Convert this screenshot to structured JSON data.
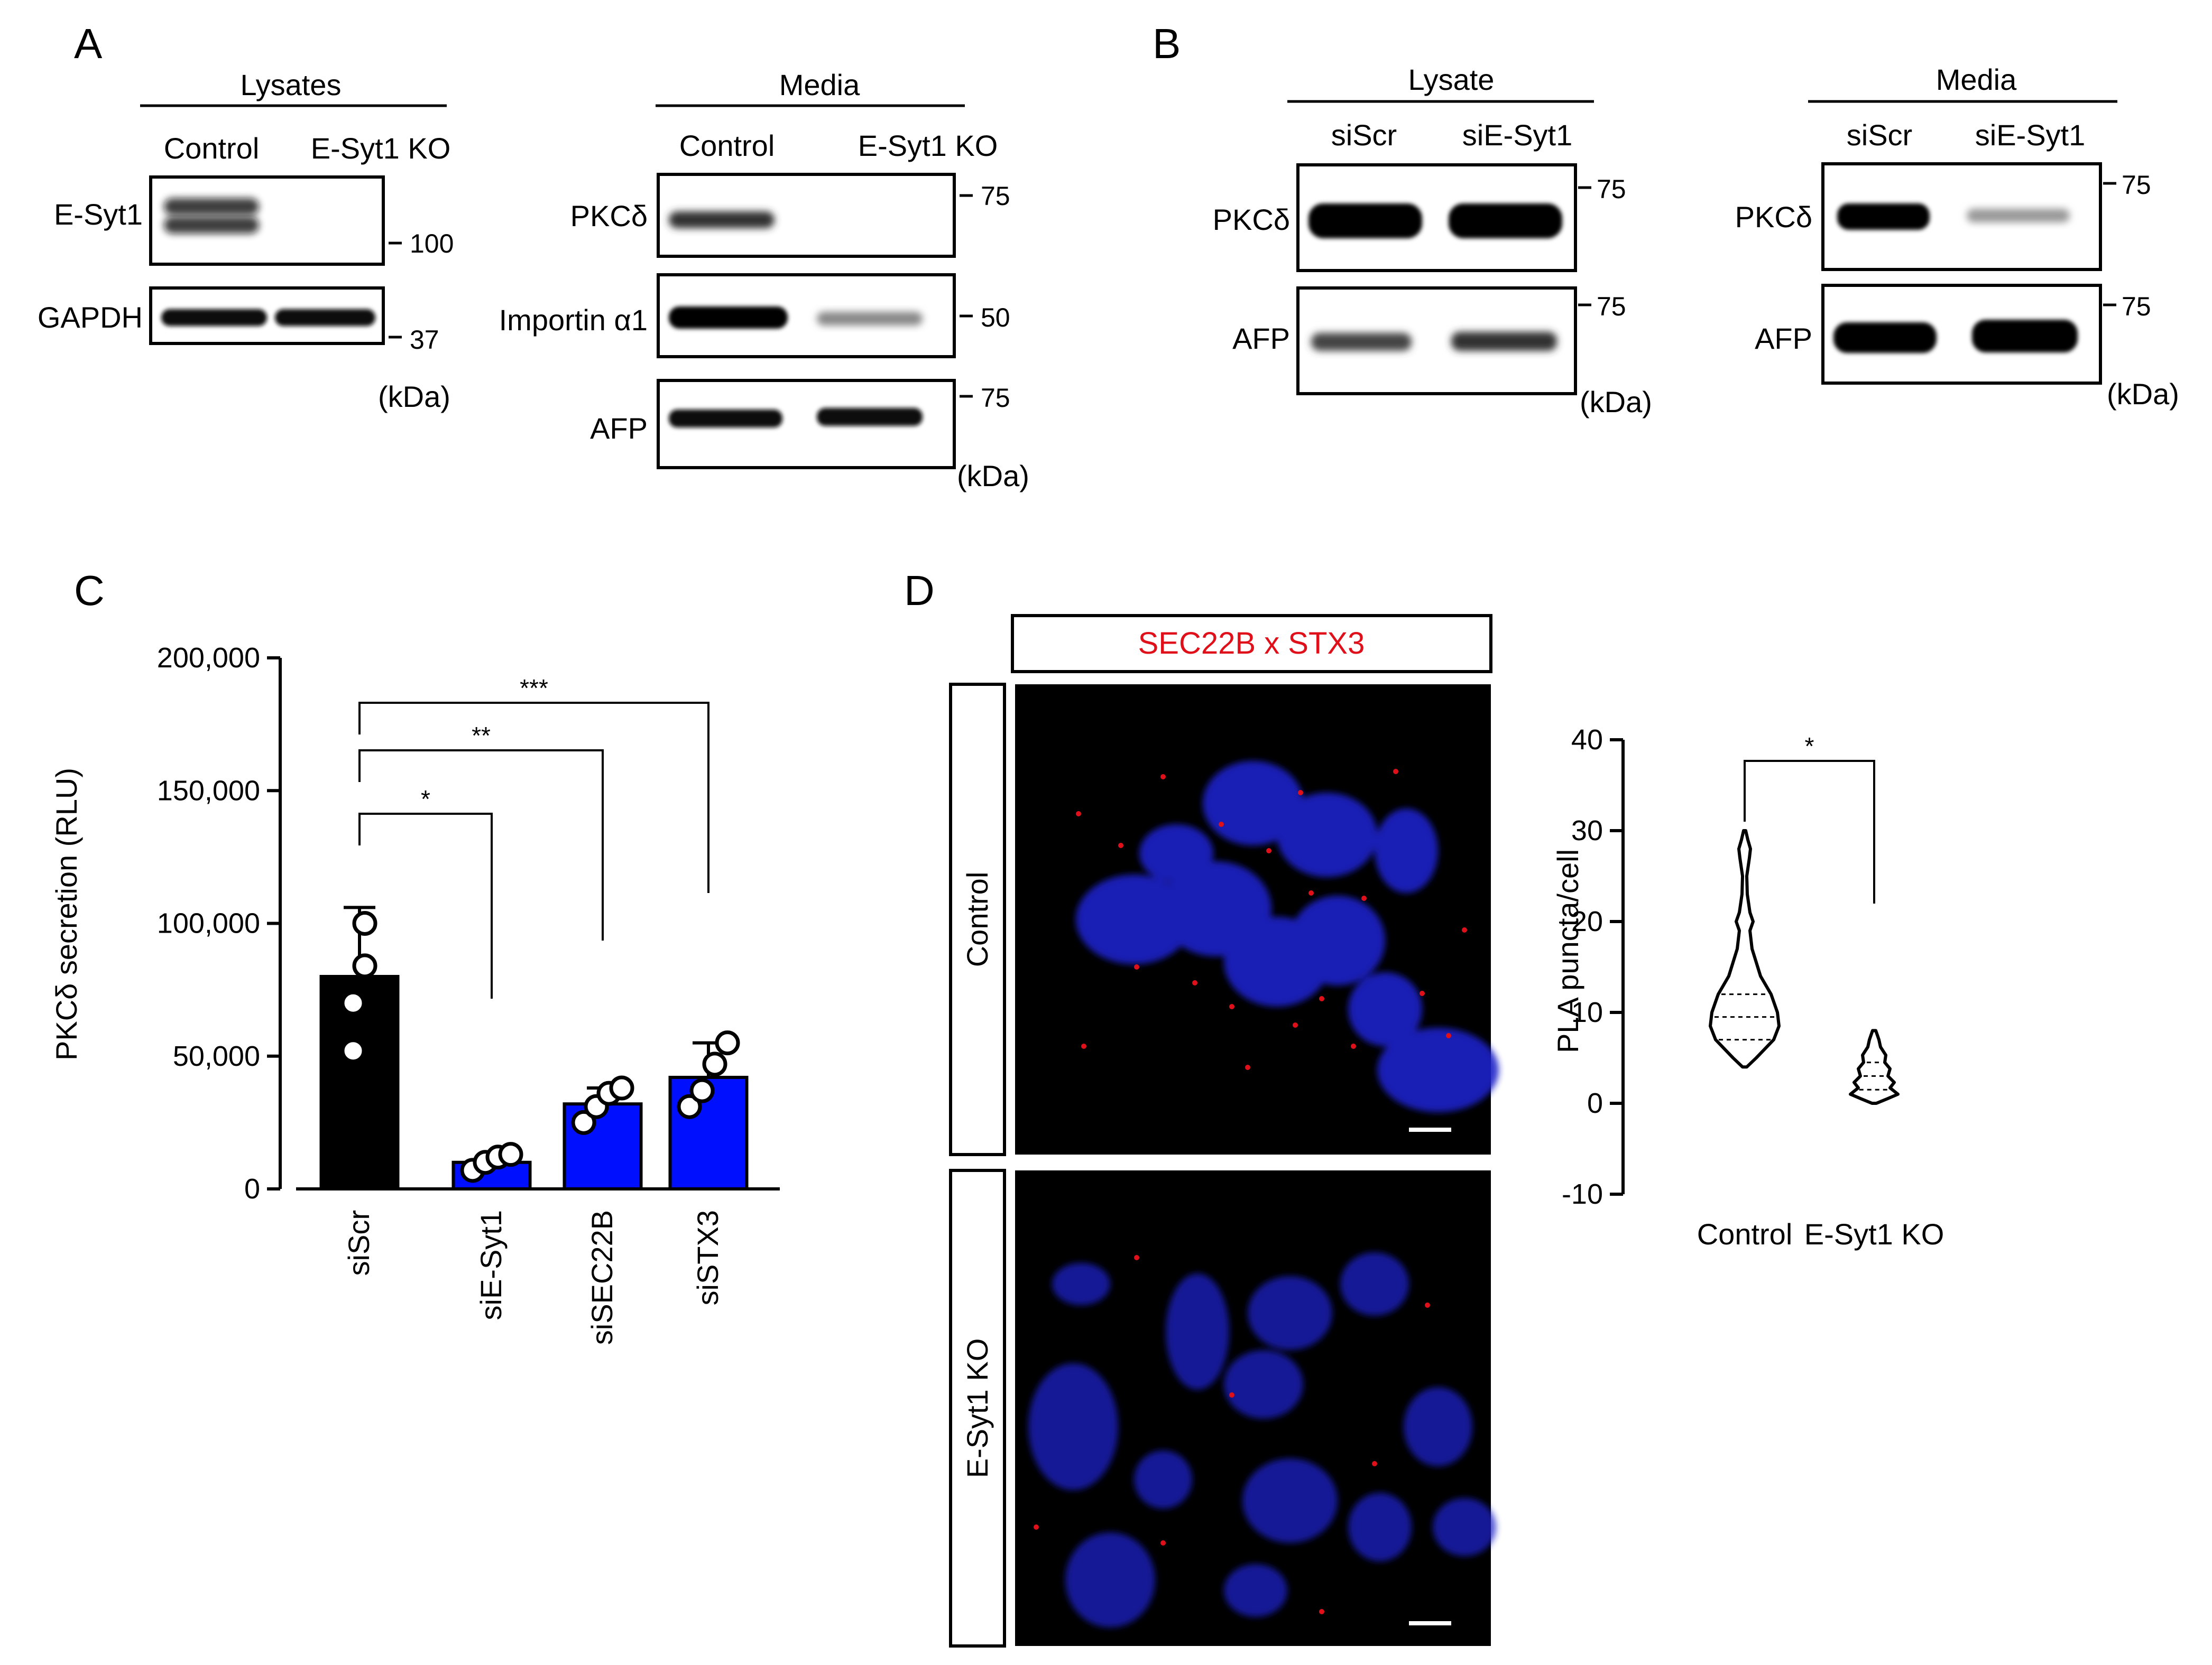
{
  "panel_A": {
    "letter": "A",
    "lysates": {
      "header": "Lysates",
      "lanes": [
        "Control",
        "E-Syt1  KO"
      ],
      "rows": [
        {
          "label": "E-Syt1",
          "marker": "100"
        },
        {
          "label": "GAPDH",
          "marker": "37"
        }
      ],
      "unit": "(kDa)"
    },
    "media": {
      "header": "Media",
      "lanes": [
        "Control",
        "E-Syt1  KO"
      ],
      "rows": [
        {
          "label": "PKCδ",
          "marker": "75"
        },
        {
          "label": "Importin α1",
          "marker": "50"
        },
        {
          "label": "AFP",
          "marker": "75"
        }
      ],
      "unit": "(kDa)"
    }
  },
  "panel_B": {
    "letter": "B",
    "lysate": {
      "header": "Lysate",
      "lanes": [
        "siScr",
        "siE-Syt1"
      ],
      "rows": [
        {
          "label": "PKCδ",
          "marker": "75"
        },
        {
          "label": "AFP",
          "marker": "75"
        }
      ],
      "unit": "(kDa)"
    },
    "media": {
      "header": "Media",
      "lanes": [
        "siScr",
        "siE-Syt1"
      ],
      "rows": [
        {
          "label": "PKCδ",
          "marker": "75"
        },
        {
          "label": "AFP",
          "marker": "75"
        }
      ],
      "unit": "(kDa)"
    }
  },
  "panel_C": {
    "letter": "C",
    "significance": [
      "*",
      "**",
      "***"
    ]
  },
  "panel_D": {
    "letter": "D",
    "image_title": "SEC22B x STX3",
    "row_labels": [
      "Control",
      "E-Syt1 KO"
    ],
    "significance": "*"
  },
  "colors": {
    "bar_black": "#000000",
    "bar_blue": "#0010ff",
    "pla_red": "#e0101a",
    "nucleus_blue": "#1a22c8"
  },
  "chart_data": [
    {
      "type": "bar",
      "panel": "C",
      "ylabel": "PKCδ secretion (RLU)",
      "categories": [
        "siScr",
        "siE-Syt1",
        "siSEC22B",
        "siSTX3"
      ],
      "values": [
        80000,
        10000,
        32000,
        42000
      ],
      "errors": [
        26000,
        2000,
        6000,
        13000
      ],
      "points": [
        [
          100000,
          84000,
          70000,
          52000
        ],
        [
          7000,
          10000,
          12000,
          13000
        ],
        [
          25000,
          31000,
          36000,
          38000
        ],
        [
          31000,
          37000,
          47000,
          55000
        ]
      ],
      "bar_colors": [
        "#000000",
        "#0010ff",
        "#0010ff",
        "#0010ff"
      ],
      "ylim": [
        0,
        200000
      ],
      "yticks": [
        "0",
        "50,000",
        "100,000",
        "150,000",
        "200,000"
      ],
      "yticks_values": [
        0,
        50000,
        100000,
        150000,
        200000
      ]
    },
    {
      "type": "violin",
      "panel": "D",
      "ylabel": "PLA puncta/cell",
      "categories": [
        "Control",
        "E-Syt1 KO"
      ],
      "ylim": [
        -10,
        40
      ],
      "yticks": [
        "-10",
        "0",
        "10",
        "20",
        "30",
        "40"
      ],
      "yticks_values": [
        -10,
        0,
        10,
        20,
        30,
        40
      ],
      "groups": [
        {
          "name": "Control",
          "min": 4,
          "max": 30,
          "q1": 7,
          "median": 9.5,
          "q3": 12
        },
        {
          "name": "E-Syt1 KO",
          "min": 0,
          "max": 8,
          "q1": 1.5,
          "median": 3,
          "q3": 4.5
        }
      ]
    }
  ]
}
